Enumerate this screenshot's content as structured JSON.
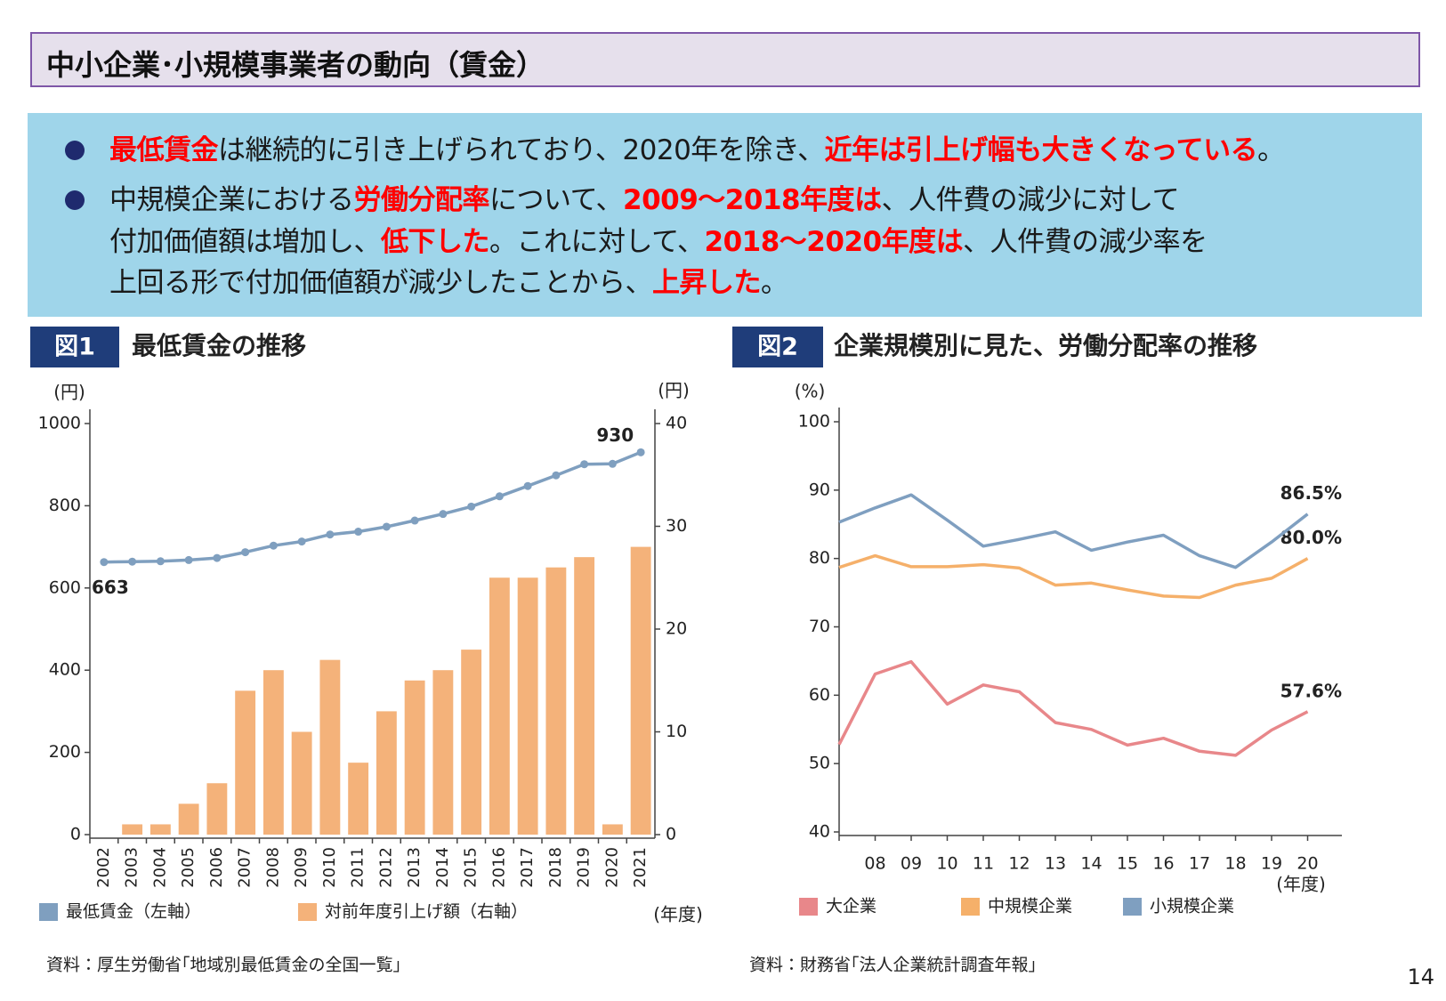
{
  "header": {
    "title": "中小企業･小規模事業者の動向（賃金）"
  },
  "bullets": [
    {
      "lines": [
        [
          {
            "text": "最低賃金",
            "emphasis": true
          },
          {
            "text": "は継続的に引き上げられており、2020年を除き、"
          },
          {
            "text": "近年は引上げ幅も大きくなっている",
            "emphasis": true
          },
          {
            "text": "。"
          }
        ]
      ]
    },
    {
      "lines": [
        [
          {
            "text": "中規模企業における"
          },
          {
            "text": "労働分配率",
            "emphasis": true
          },
          {
            "text": "について、"
          },
          {
            "text": "2009～2018年度は",
            "emphasis": true
          },
          {
            "text": "、人件費の減少に対して"
          }
        ],
        [
          {
            "text": "付加価値額は増加し、"
          },
          {
            "text": "低下した",
            "emphasis": true
          },
          {
            "text": "。これに対して、"
          },
          {
            "text": "2018～2020年度は",
            "emphasis": true
          },
          {
            "text": "、人件費の減少率を"
          }
        ],
        [
          {
            "text": "上回る形で付加価値額が減少したことから、"
          },
          {
            "text": "上昇した",
            "emphasis": true
          },
          {
            "text": "。"
          }
        ]
      ]
    }
  ],
  "figures": [
    {
      "label": "図1",
      "title": "最低賃金の推移",
      "source": "資料：厚生労働省｢地域別最低賃金の全国一覧｣"
    },
    {
      "label": "図2",
      "title": "企業規模別に見た、労働分配率の推移",
      "source": "資料：財務省｢法人企業統計調査年報｣"
    }
  ],
  "page_number": "14",
  "chart_data": [
    {
      "type": "bar",
      "y_label": "(円)",
      "y2_label": "(円)",
      "x_label": "(年度)",
      "categories": [
        "2002",
        "2003",
        "2004",
        "2005",
        "2006",
        "2007",
        "2008",
        "2009",
        "2010",
        "2011",
        "2012",
        "2013",
        "2014",
        "2015",
        "2016",
        "2017",
        "2018",
        "2019",
        "2020",
        "2021"
      ],
      "series": [
        {
          "name": "最低賃金（左軸）",
          "type": "line",
          "markers": true,
          "color": "#7f9fbf",
          "values": [
            663,
            664,
            665,
            668,
            673,
            687,
            703,
            713,
            730,
            737,
            749,
            764,
            780,
            798,
            823,
            848,
            874,
            901,
            902,
            930
          ]
        },
        {
          "name": "対前年度引上げ額（右軸）",
          "type": "bar",
          "axis": "y2",
          "color": "#f4b27a",
          "values": [
            0,
            1,
            1,
            3,
            5,
            14,
            16,
            10,
            17,
            7,
            12,
            15,
            16,
            18,
            25,
            25,
            26,
            27,
            1,
            28
          ]
        }
      ],
      "ylim": [
        0,
        1000
      ],
      "yticks": [
        0,
        200,
        400,
        600,
        800,
        1000
      ],
      "y2lim": [
        0,
        40
      ],
      "y2ticks": [
        0,
        10,
        20,
        30,
        40
      ]
    },
    {
      "type": "line",
      "y_label": "(%)",
      "x_label": "(年度)",
      "categories": [
        null,
        "08",
        "09",
        "10",
        "11",
        "12",
        "13",
        "14",
        "15",
        "16",
        "17",
        "18",
        "19",
        "20"
      ],
      "series": [
        {
          "name": "大企業",
          "color": "#e8878a",
          "values": [
            52.8,
            63.1,
            64.9,
            58.7,
            61.5,
            60.5,
            56.0,
            55.0,
            52.7,
            53.7,
            51.8,
            51.2,
            54.9,
            57.6
          ],
          "value_labels": [
            null,
            null,
            null,
            null,
            null,
            null,
            null,
            null,
            null,
            null,
            null,
            null,
            null,
            "57.6%"
          ]
        },
        {
          "name": "中規模企業",
          "color": "#f5b06a",
          "values": [
            78.7,
            80.4,
            78.8,
            78.8,
            79.1,
            78.6,
            76.1,
            76.4,
            75.4,
            74.5,
            74.3,
            76.1,
            77.1,
            80.0
          ],
          "value_labels": [
            null,
            null,
            null,
            null,
            null,
            null,
            null,
            null,
            null,
            null,
            null,
            null,
            null,
            "80.0%"
          ]
        },
        {
          "name": "小規模企業",
          "color": "#7f9fc0",
          "values": [
            85.3,
            87.4,
            89.3,
            85.6,
            81.8,
            82.8,
            83.9,
            81.2,
            82.4,
            83.4,
            80.4,
            78.7,
            82.4,
            86.5
          ],
          "value_labels": [
            null,
            null,
            null,
            null,
            null,
            null,
            null,
            null,
            null,
            null,
            null,
            null,
            null,
            "86.5%"
          ]
        }
      ],
      "ylim": [
        40,
        100
      ],
      "yticks": [
        40,
        50,
        60,
        70,
        80,
        90,
        100
      ]
    }
  ]
}
